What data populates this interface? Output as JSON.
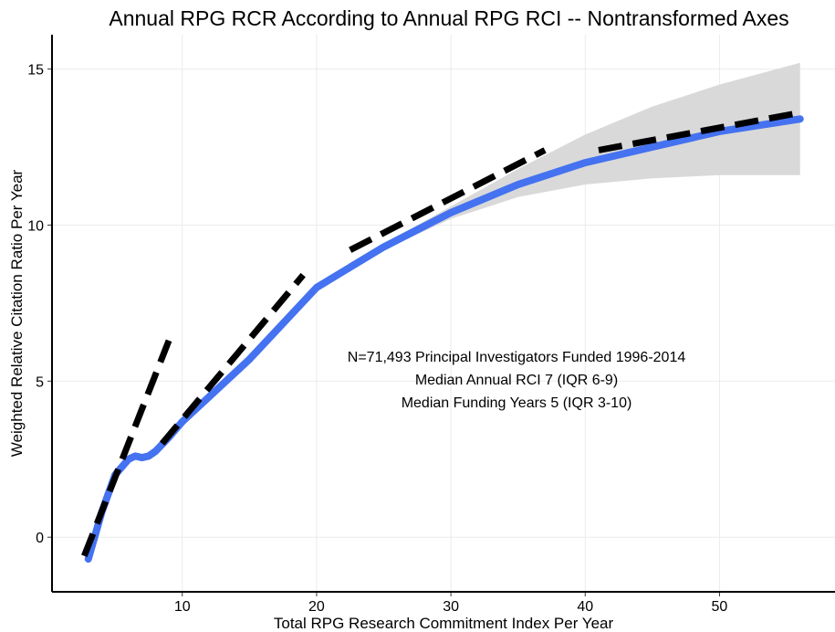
{
  "chart_data": {
    "type": "line",
    "title": "Annual RPG RCR According to Annual RPG RCI -- Nontransformed Axes",
    "x_label": "Total RPG Research Commitment Index Per Year",
    "y_label": "Weighted Relative Citation Ratio Per Year",
    "annotations": [
      "N=71,493 Principal Investigators Funded 1996-2014",
      "Median Annual RCI 7 (IQR 6-9)",
      "Median Funding Years 5 (IQR 3-10)"
    ],
    "xlim": [
      0.3,
      58.6
    ],
    "ylim": [
      -1.75,
      16.1
    ],
    "xticks": [
      10,
      20,
      30,
      40,
      50
    ],
    "yticks": [
      0,
      5,
      10,
      15
    ],
    "grid": true,
    "band": {
      "color": "#d9d9d9",
      "x": [
        20,
        25,
        30,
        35,
        40,
        45,
        50,
        56
      ],
      "upper": [
        8.0,
        9.4,
        10.6,
        11.8,
        12.9,
        13.8,
        14.5,
        15.2
      ],
      "lower": [
        8.0,
        9.2,
        10.2,
        10.9,
        11.3,
        11.5,
        11.6,
        11.6
      ]
    },
    "series": [
      {
        "color": "#4472f0",
        "x": [
          3,
          4,
          5,
          6,
          6.5,
          7,
          7.5,
          8,
          9,
          10,
          12,
          15,
          20,
          25,
          30,
          35,
          40,
          45,
          50,
          56
        ],
        "values": [
          -0.7,
          0.8,
          2.0,
          2.5,
          2.6,
          2.55,
          2.6,
          2.75,
          3.2,
          3.7,
          4.5,
          5.7,
          8.0,
          9.3,
          10.4,
          11.3,
          12.0,
          12.5,
          13.0,
          13.4
        ]
      }
    ],
    "tangents": [
      {
        "color": "#000000",
        "x": [
          2.7,
          9
        ],
        "values": [
          -0.6,
          6.3
        ]
      },
      {
        "color": "#000000",
        "x": [
          8.5,
          19
        ],
        "values": [
          3.0,
          8.4
        ]
      },
      {
        "color": "#000000",
        "x": [
          22.5,
          37
        ],
        "values": [
          9.2,
          12.4
        ]
      },
      {
        "color": "#000000",
        "x": [
          41,
          56
        ],
        "values": [
          12.4,
          13.6
        ]
      }
    ]
  }
}
